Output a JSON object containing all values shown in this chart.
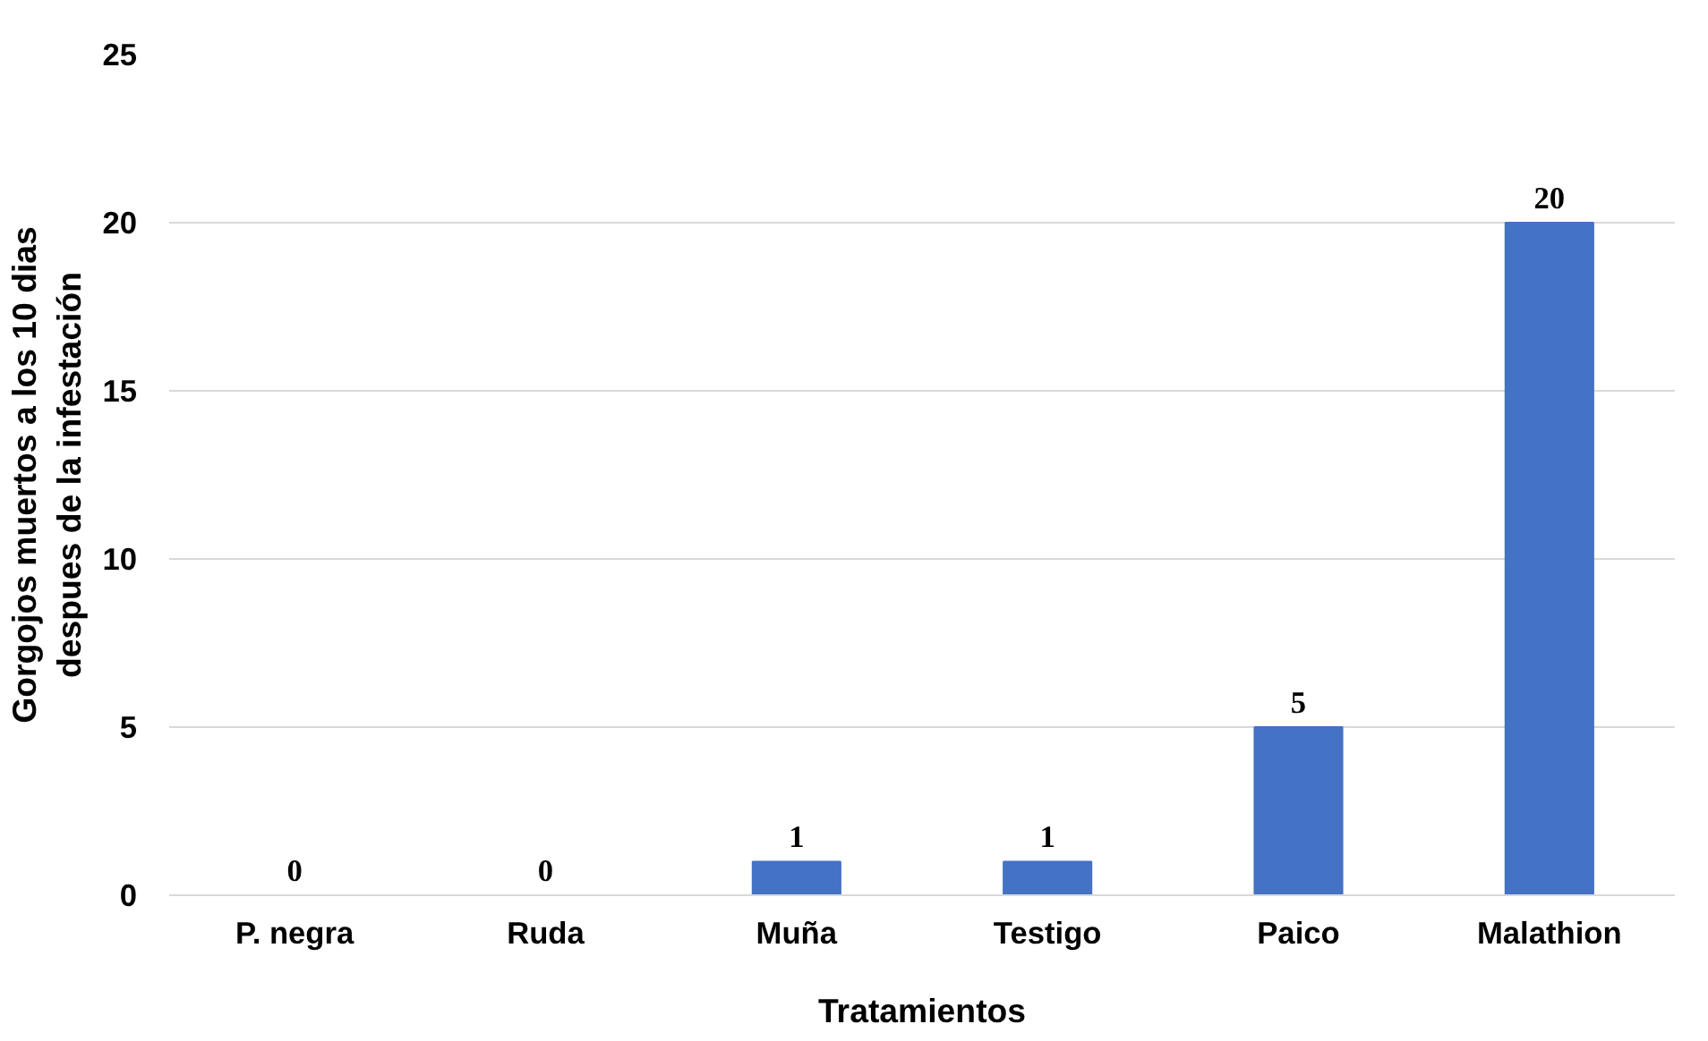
{
  "chart_data": {
    "type": "bar",
    "xlabel": "Tratamientos",
    "ylabel": "Gorgojos muertos a los 10 dias\ndespues de la infestación",
    "categories": [
      "P. negra",
      "Ruda",
      "Muña",
      "Testigo",
      "Paico",
      "Malathion"
    ],
    "values": [
      0,
      0,
      1,
      1,
      5,
      20
    ],
    "color": "#4472c4",
    "ylim": [
      0,
      25
    ],
    "yticks": [
      0,
      5,
      10,
      15,
      20,
      25
    ],
    "grid": "y",
    "data_labels": true
  }
}
